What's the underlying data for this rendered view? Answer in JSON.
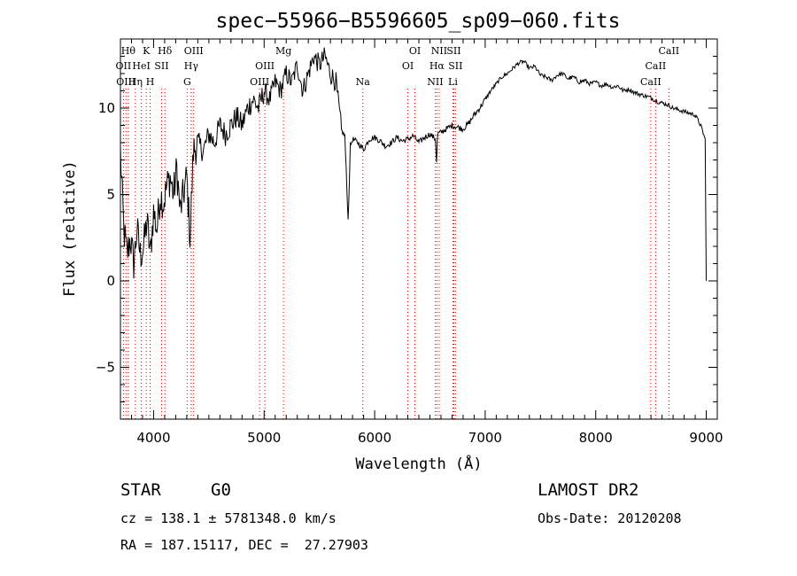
{
  "chart_data": {
    "type": "line",
    "title": "spec−55966−B5596605_sp09−060.fits",
    "xlabel": "Wavelength (Å)",
    "ylabel": "Flux (relative)",
    "xlim": [
      3700,
      9100
    ],
    "ylim": [
      -8,
      14
    ],
    "xticks": [
      4000,
      5000,
      6000,
      7000,
      8000,
      9000
    ],
    "yticks": [
      -5,
      0,
      5,
      10
    ],
    "series": [
      {
        "x": [
          3700,
          3730,
          3760,
          3790,
          3820,
          3850,
          3880,
          3910,
          3940,
          3970,
          4000,
          4030,
          4060,
          4090,
          4120,
          4150,
          4180,
          4210,
          4240,
          4270,
          4300,
          4330,
          4360,
          4400,
          4450,
          4500,
          4550,
          4600,
          4650,
          4700,
          4750,
          4800,
          4850,
          4900,
          4950,
          5000,
          5050,
          5100,
          5150,
          5200,
          5250,
          5300,
          5350,
          5400,
          5450,
          5500,
          5550,
          5600,
          5650,
          5700,
          5730,
          5760,
          5780,
          5800,
          5850,
          5900,
          5950,
          6000,
          6050,
          6100,
          6150,
          6200,
          6250,
          6300,
          6350,
          6400,
          6450,
          6500,
          6550,
          6560,
          6570,
          6600,
          6650,
          6700,
          6750,
          6800,
          6850,
          6900,
          6950,
          7000,
          7050,
          7100,
          7150,
          7200,
          7250,
          7300,
          7350,
          7400,
          7450,
          7500,
          7550,
          7600,
          7650,
          7700,
          7750,
          7800,
          7850,
          7900,
          7950,
          8000,
          8050,
          8100,
          8150,
          8200,
          8250,
          8300,
          8350,
          8400,
          8450,
          8500,
          8550,
          8600,
          8650,
          8700,
          8750,
          8800,
          8850,
          8900,
          8950,
          8990,
          9000
        ],
        "y": [
          7.5,
          3.0,
          1.5,
          2.5,
          1.0,
          3.0,
          1.5,
          2.0,
          3.5,
          1.5,
          4.0,
          3.0,
          5.0,
          4.5,
          5.5,
          6.0,
          5.0,
          6.5,
          4.0,
          5.0,
          6.0,
          2.5,
          7.5,
          8.0,
          7.5,
          8.5,
          8.0,
          9.0,
          8.5,
          9.0,
          9.5,
          9.0,
          10.0,
          10.5,
          10.0,
          11.0,
          10.5,
          11.5,
          11.0,
          12.0,
          11.5,
          12.5,
          11.0,
          12.0,
          13.0,
          12.5,
          13.0,
          12.0,
          11.5,
          8.7,
          8.4,
          3.5,
          7.8,
          8.2,
          8.0,
          7.6,
          8.2,
          8.3,
          8.1,
          7.8,
          8.0,
          8.3,
          8.1,
          8.2,
          8.4,
          8.0,
          8.3,
          8.5,
          8.2,
          6.9,
          8.5,
          8.6,
          8.8,
          9.0,
          8.9,
          8.8,
          9.1,
          9.6,
          10.0,
          10.5,
          11.0,
          11.4,
          11.8,
          12.0,
          12.3,
          12.6,
          12.7,
          12.3,
          12.4,
          11.9,
          11.8,
          11.6,
          11.9,
          12.0,
          11.7,
          11.8,
          11.5,
          11.6,
          11.4,
          11.5,
          11.3,
          11.4,
          11.2,
          11.3,
          11.0,
          11.1,
          10.9,
          10.8,
          10.7,
          10.6,
          10.4,
          10.3,
          10.2,
          10.0,
          9.9,
          9.8,
          9.7,
          9.6,
          9.0,
          8.2,
          0.0
        ]
      }
    ],
    "lines": [
      {
        "wave": 3727,
        "label": "OII",
        "row": 2
      },
      {
        "wave": 3750,
        "label": "OIII",
        "row": 3
      },
      {
        "wave": 3771,
        "label": "Hθ",
        "row": 1
      },
      {
        "wave": 3835,
        "label": "Hη",
        "row": 3
      },
      {
        "wave": 3889,
        "label": "HeI",
        "row": 2
      },
      {
        "wave": 3934,
        "label": "K",
        "row": 1
      },
      {
        "wave": 3969,
        "label": "H",
        "row": 3
      },
      {
        "wave": 4072,
        "label": "SII",
        "row": 2
      },
      {
        "wave": 4102,
        "label": "Hδ",
        "row": 1
      },
      {
        "wave": 4304,
        "label": "G",
        "row": 3
      },
      {
        "wave": 4340,
        "label": "Hγ",
        "row": 2
      },
      {
        "wave": 4363,
        "label": "OIII",
        "row": 1
      },
      {
        "wave": 4959,
        "label": "OIII",
        "row": 3
      },
      {
        "wave": 5007,
        "label": "OIII",
        "row": 2
      },
      {
        "wave": 5175,
        "label": "Mg",
        "row": 1
      },
      {
        "wave": 5893,
        "label": "Na",
        "row": 3
      },
      {
        "wave": 6300,
        "label": "OI",
        "row": 2
      },
      {
        "wave": 6364,
        "label": "OI",
        "row": 1
      },
      {
        "wave": 6548,
        "label": "NII",
        "row": 3
      },
      {
        "wave": 6563,
        "label": "Hα",
        "row": 2
      },
      {
        "wave": 6584,
        "label": "NII",
        "row": 1
      },
      {
        "wave": 6708,
        "label": "Li",
        "row": 3
      },
      {
        "wave": 6716,
        "label": "SII",
        "row": 1
      },
      {
        "wave": 6731,
        "label": "SII",
        "row": 2
      },
      {
        "wave": 8498,
        "label": "CaII",
        "row": 3
      },
      {
        "wave": 8542,
        "label": "CaII",
        "row": 2
      },
      {
        "wave": 8662,
        "label": "CaII",
        "row": 1
      }
    ]
  },
  "info": {
    "class": "STAR",
    "subclass": "G0",
    "survey": "LAMOST DR2",
    "cz": "cz = 138.1 ± 5781348.0 km/s",
    "obsdate": "Obs-Date: 20120208",
    "radec": "RA = 187.15117, DEC =  27.27903"
  }
}
